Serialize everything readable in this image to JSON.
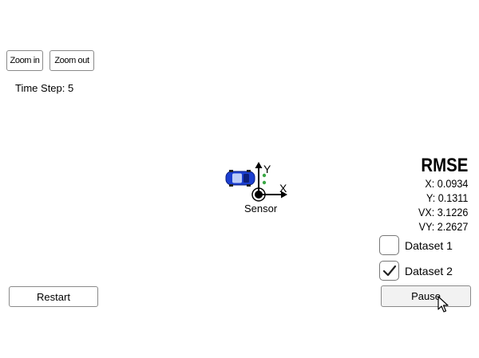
{
  "toolbar": {
    "zoom_in_label": "Zoom in",
    "zoom_out_label": "Zoom out"
  },
  "status": {
    "time_step_label": "Time Step: 5"
  },
  "scene": {
    "axis_x_label": "X",
    "axis_y_label": "Y",
    "sensor_label": "Sensor",
    "car_color": "#1c3fd0",
    "estimate_color": "#3aa845"
  },
  "rmse": {
    "title": "RMSE",
    "x": "X: 0.0934",
    "y": "Y: 0.1311",
    "vx": "VX: 3.1226",
    "vy": "VY: 2.2627"
  },
  "datasets": {
    "dataset1": {
      "label": "Dataset 1",
      "checked": false
    },
    "dataset2": {
      "label": "Dataset 2",
      "checked": true
    }
  },
  "controls": {
    "restart_label": "Restart",
    "pause_label": "Pause"
  }
}
